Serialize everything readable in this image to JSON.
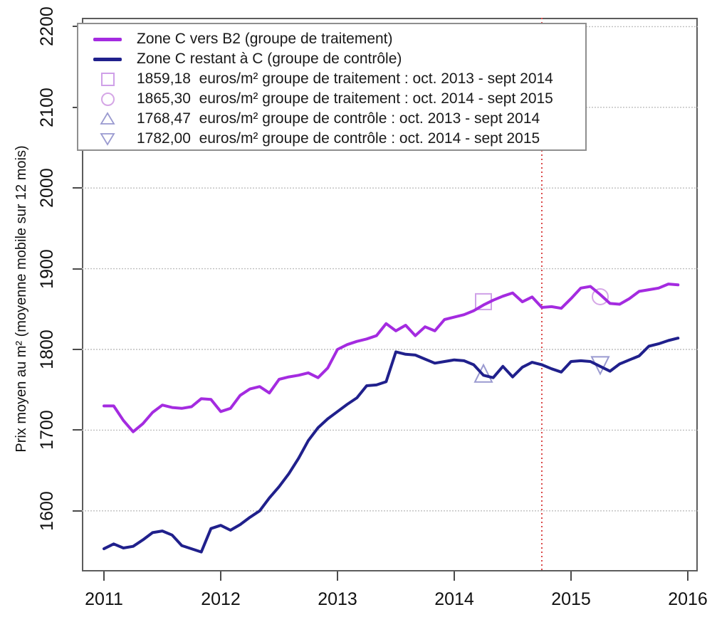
{
  "figure": {
    "background": "#ffffff",
    "border_color": "#5c5c5c"
  },
  "chart_data": {
    "type": "line",
    "title": "",
    "xlabel": "",
    "ylabel": "Prix moyen au m² (moyenne mobile sur 12 mois)",
    "xlim": [
      2010.81,
      2016.09
    ],
    "ylim": [
      1524,
      2210
    ],
    "xticks": [
      2011,
      2012,
      2013,
      2014,
      2015,
      2016
    ],
    "yticks": [
      1600,
      1700,
      1800,
      1900,
      2000,
      2100,
      2200
    ],
    "grid": "horizontal dotted light-gray",
    "legend_position": "top-left",
    "x_start": 2011.0,
    "x_step_years": 0.0833333,
    "series": [
      {
        "name": "Zone C vers B2 (groupe de traitement)",
        "color": "#A42BE0",
        "values": [
          1730,
          1730,
          1712,
          1698,
          1708,
          1722,
          1731,
          1728,
          1727,
          1729,
          1739,
          1738,
          1723,
          1727,
          1743,
          1751,
          1754,
          1746,
          1763,
          1766,
          1768,
          1771,
          1765,
          1777,
          1800,
          1806,
          1810,
          1813,
          1817,
          1832,
          1823,
          1830,
          1817,
          1828,
          1823,
          1837,
          1840,
          1843,
          1848,
          1855,
          1861,
          1866,
          1870,
          1859,
          1865,
          1852,
          1853,
          1851,
          1863,
          1876,
          1878,
          1868,
          1857,
          1856,
          1863,
          1872,
          1874,
          1876,
          1881,
          1880
        ]
      },
      {
        "name": "Zone C restant à C (groupe de contrôle)",
        "color": "#20208C",
        "values": [
          1553,
          1559,
          1554,
          1556,
          1564,
          1573,
          1575,
          1570,
          1557,
          1553,
          1549,
          1578,
          1582,
          1576,
          1583,
          1592,
          1600,
          1616,
          1630,
          1646,
          1665,
          1687,
          1703,
          1714,
          1723,
          1732,
          1740,
          1755,
          1756,
          1760,
          1797,
          1794,
          1793,
          1788,
          1783,
          1785,
          1787,
          1786,
          1781,
          1768,
          1765,
          1779,
          1766,
          1778,
          1784,
          1781,
          1776,
          1772,
          1785,
          1786,
          1785,
          1779,
          1773,
          1782,
          1787,
          1792,
          1804,
          1807,
          1811,
          1814
        ]
      }
    ],
    "markers": [
      {
        "shape": "square",
        "x": 2014.25,
        "y": 1859.18,
        "color": "#CFA0E8"
      },
      {
        "shape": "circle",
        "x": 2015.25,
        "y": 1865.3,
        "color": "#D5A6E6"
      },
      {
        "shape": "triangle-up",
        "x": 2014.25,
        "y": 1768.47,
        "color": "#9A9AD0"
      },
      {
        "shape": "triangle-down",
        "x": 2015.25,
        "y": 1782.0,
        "color": "#9A9AD0"
      }
    ],
    "vline": {
      "x": 2014.75,
      "color": "#DB4A4A",
      "style": "dashed"
    }
  },
  "legend": {
    "items": [
      {
        "type": "line",
        "color": "#A42BE0",
        "label": "Zone C vers B2 (groupe de traitement)"
      },
      {
        "type": "line",
        "color": "#20208C",
        "label": "Zone C restant à C (groupe de contrôle)"
      },
      {
        "type": "square",
        "color": "#CFA0E8",
        "label": "1859,18  euros/m² groupe de traitement : oct. 2013 - sept 2014"
      },
      {
        "type": "circle",
        "color": "#D5A6E6",
        "label": "1865,30  euros/m² groupe de traitement : oct. 2014 - sept 2015"
      },
      {
        "type": "triangle-up",
        "color": "#9A9AD0",
        "label": "1768,47  euros/m² groupe de contrôle : oct. 2013 - sept 2014"
      },
      {
        "type": "triangle-down",
        "color": "#9A9AD0",
        "label": "1782,00  euros/m² groupe de contrôle : oct. 2014 - sept 2015"
      }
    ]
  }
}
